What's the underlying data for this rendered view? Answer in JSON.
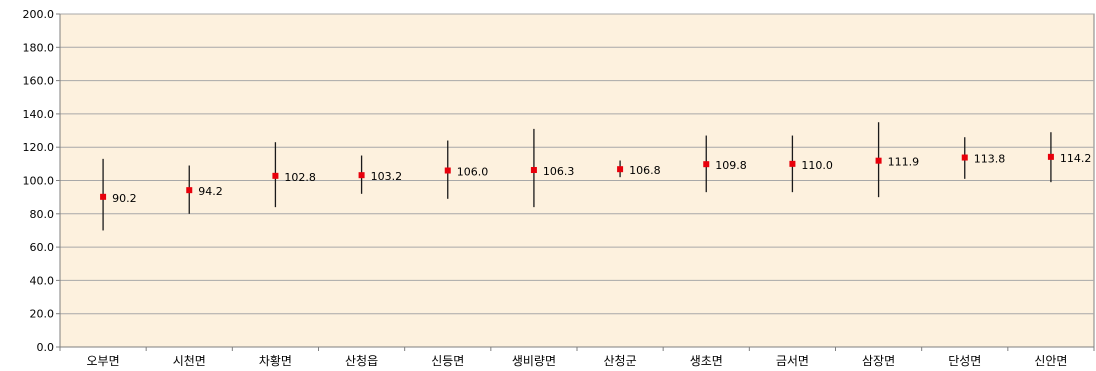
{
  "chart_data": {
    "type": "scatter",
    "title": "",
    "xlabel": "",
    "ylabel": "",
    "ylim": [
      0,
      200
    ],
    "yticks": [
      "0.0",
      "20.0",
      "40.0",
      "60.0",
      "80.0",
      "100.0",
      "120.0",
      "140.0",
      "160.0",
      "180.0",
      "200.0"
    ],
    "grid": true,
    "legend": "none",
    "colors": {
      "plot_background": "#fdf1de",
      "gridline": "#a8a8a8",
      "marker": "#e8000b",
      "error_bar": "#1a1a1a",
      "axis": "#7f7f7f"
    },
    "categories": [
      "오부면",
      "시천면",
      "차황면",
      "산청읍",
      "신등면",
      "생비량면",
      "산청군",
      "생초면",
      "금서면",
      "삼장면",
      "단성면",
      "신안면"
    ],
    "values": [
      90.2,
      94.2,
      102.8,
      103.2,
      106.0,
      106.3,
      106.8,
      109.8,
      110.0,
      111.9,
      113.8,
      114.2
    ],
    "value_labels": [
      "90.2",
      "94.2",
      "102.8",
      "103.2",
      "106.0",
      "106.3",
      "106.8",
      "109.8",
      "110.0",
      "111.9",
      "113.8",
      "114.2"
    ],
    "lower": [
      70,
      80,
      84,
      92,
      89,
      84,
      102,
      93,
      93,
      90,
      101,
      99
    ],
    "upper": [
      113,
      109,
      123,
      115,
      124,
      131,
      112,
      127,
      127,
      135,
      126,
      129
    ]
  }
}
